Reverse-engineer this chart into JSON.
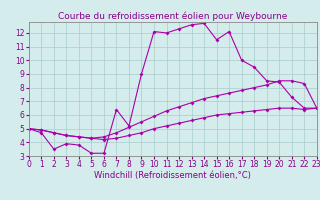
{
  "title": "Courbe du refroidissement éolien pour Weybourne",
  "xlabel": "Windchill (Refroidissement éolien,°C)",
  "xlim": [
    0,
    23
  ],
  "ylim": [
    3,
    12.8
  ],
  "yticks": [
    3,
    4,
    5,
    6,
    7,
    8,
    9,
    10,
    11,
    12
  ],
  "xticks": [
    0,
    1,
    2,
    3,
    4,
    5,
    6,
    7,
    8,
    9,
    10,
    11,
    12,
    13,
    14,
    15,
    16,
    17,
    18,
    19,
    20,
    21,
    22,
    23
  ],
  "bg_color": "#d4ecec",
  "grid_color": "#aacccc",
  "line_color": "#aa00aa",
  "line1_x": [
    0,
    1,
    2,
    3,
    4,
    5,
    6,
    7,
    8,
    9,
    10,
    11,
    12,
    13,
    14,
    15,
    16,
    17,
    18,
    19,
    20,
    21,
    22,
    23
  ],
  "line1_y": [
    5.0,
    4.7,
    3.5,
    3.9,
    3.8,
    3.2,
    3.2,
    6.4,
    5.2,
    9.0,
    12.1,
    12.0,
    12.3,
    12.6,
    12.7,
    11.5,
    12.1,
    10.0,
    9.5,
    8.5,
    8.4,
    7.3,
    6.5,
    6.5
  ],
  "line2_x": [
    0,
    1,
    2,
    3,
    4,
    5,
    6,
    7,
    8,
    9,
    10,
    11,
    12,
    13,
    14,
    15,
    16,
    17,
    18,
    19,
    20,
    21,
    22,
    23
  ],
  "line2_y": [
    5.0,
    4.9,
    4.7,
    4.5,
    4.4,
    4.3,
    4.4,
    4.7,
    5.1,
    5.5,
    5.9,
    6.3,
    6.6,
    6.9,
    7.2,
    7.4,
    7.6,
    7.8,
    8.0,
    8.2,
    8.5,
    8.5,
    8.3,
    6.5
  ],
  "line3_x": [
    0,
    1,
    2,
    3,
    4,
    5,
    6,
    7,
    8,
    9,
    10,
    11,
    12,
    13,
    14,
    15,
    16,
    17,
    18,
    19,
    20,
    21,
    22,
    23
  ],
  "line3_y": [
    5.0,
    4.9,
    4.7,
    4.5,
    4.4,
    4.3,
    4.2,
    4.3,
    4.5,
    4.7,
    5.0,
    5.2,
    5.4,
    5.6,
    5.8,
    6.0,
    6.1,
    6.2,
    6.3,
    6.4,
    6.5,
    6.5,
    6.4,
    6.5
  ],
  "marker": "D",
  "markersize": 2.0,
  "linewidth": 0.8,
  "title_fontsize": 6.5,
  "label_fontsize": 6.0,
  "tick_fontsize": 5.5,
  "text_color": "#880088",
  "spine_color": "#888888"
}
